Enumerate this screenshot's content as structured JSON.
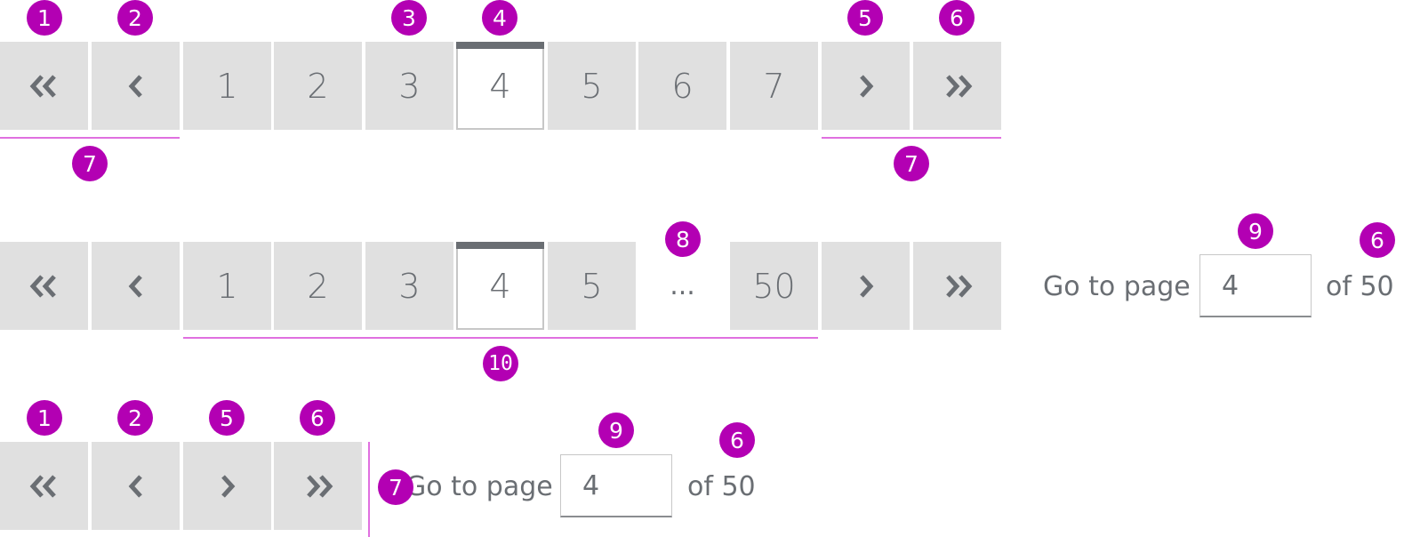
{
  "colors": {
    "annotation": "#b300b3",
    "bracket": "#e070e0",
    "button_bg": "#e0e0e0",
    "text": "#6a6e73"
  },
  "icons": {
    "first": "double-chevron-left-icon",
    "prev": "chevron-left-icon",
    "next": "chevron-right-icon",
    "last": "double-chevron-right-icon"
  },
  "row1": {
    "pages": [
      "1",
      "2",
      "3",
      "4",
      "5",
      "6",
      "7"
    ],
    "current": "4",
    "badges": {
      "first": "1",
      "prev": "2",
      "page": "3",
      "current": "4",
      "next": "5",
      "last": "6",
      "group_left": "7",
      "group_right": "7"
    }
  },
  "row2": {
    "pages": [
      "1",
      "2",
      "3",
      "4",
      "5"
    ],
    "ellipsis": "...",
    "last_page": "50",
    "current": "4",
    "goto_label": "Go to page",
    "goto_value": "4",
    "of_label": "of 50",
    "badges": {
      "ellipsis": "8",
      "input": "9",
      "of": "6",
      "range": "10"
    }
  },
  "row3": {
    "goto_label": "Go to page",
    "goto_value": "4",
    "of_label": "of 50",
    "badges": {
      "first": "1",
      "prev": "2",
      "next": "5",
      "last": "6",
      "divider": "7",
      "input": "9",
      "of": "6"
    }
  }
}
